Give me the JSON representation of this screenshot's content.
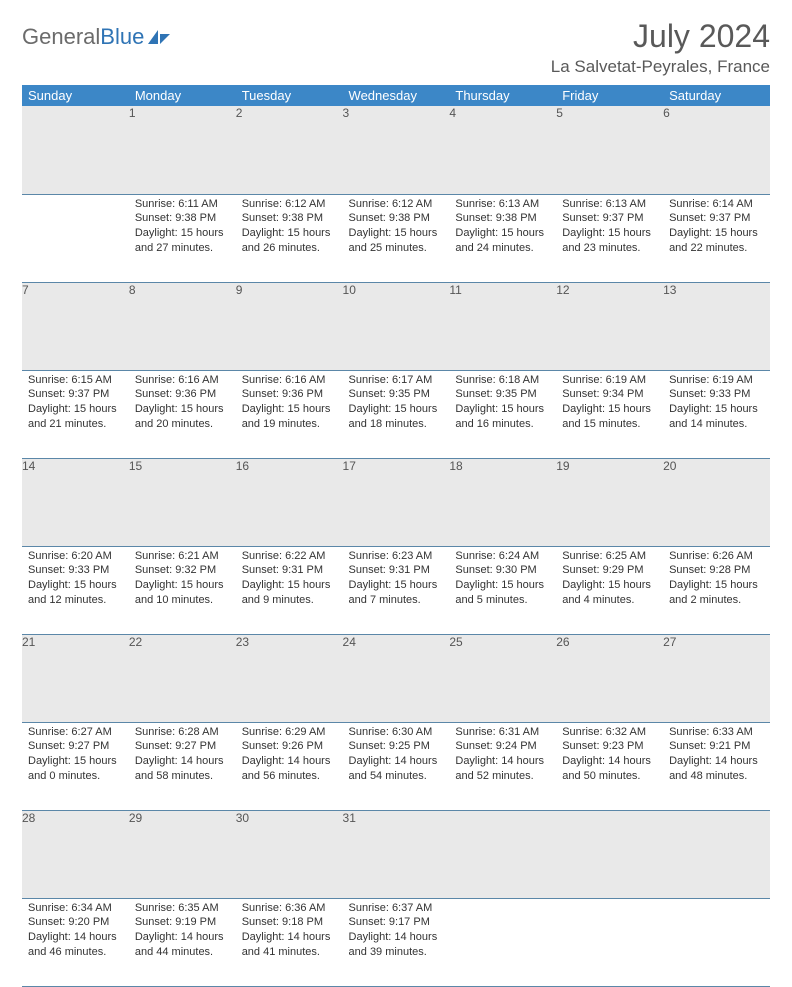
{
  "logo": {
    "text_a": "General",
    "text_b": "Blue"
  },
  "title": "July 2024",
  "location": "La Salvetat-Peyrales, France",
  "colors": {
    "header_bg": "#3c87c7",
    "header_fg": "#ffffff",
    "daynum_bg": "#e9e9e9",
    "row_border": "#5b87a8",
    "title_color": "#595959",
    "logo_gray": "#6b6b6b",
    "logo_blue": "#2f74b5",
    "body_text": "#333333"
  },
  "typography": {
    "title_fontsize": 32,
    "location_fontsize": 17,
    "weekday_fontsize": 13,
    "daynum_fontsize": 12,
    "body_fontsize": 11
  },
  "weekdays": [
    "Sunday",
    "Monday",
    "Tuesday",
    "Wednesday",
    "Thursday",
    "Friday",
    "Saturday"
  ],
  "weeks": [
    [
      {
        "n": "",
        "sr": "",
        "ss": "",
        "dl": ""
      },
      {
        "n": "1",
        "sr": "Sunrise: 6:11 AM",
        "ss": "Sunset: 9:38 PM",
        "dl": "Daylight: 15 hours and 27 minutes."
      },
      {
        "n": "2",
        "sr": "Sunrise: 6:12 AM",
        "ss": "Sunset: 9:38 PM",
        "dl": "Daylight: 15 hours and 26 minutes."
      },
      {
        "n": "3",
        "sr": "Sunrise: 6:12 AM",
        "ss": "Sunset: 9:38 PM",
        "dl": "Daylight: 15 hours and 25 minutes."
      },
      {
        "n": "4",
        "sr": "Sunrise: 6:13 AM",
        "ss": "Sunset: 9:38 PM",
        "dl": "Daylight: 15 hours and 24 minutes."
      },
      {
        "n": "5",
        "sr": "Sunrise: 6:13 AM",
        "ss": "Sunset: 9:37 PM",
        "dl": "Daylight: 15 hours and 23 minutes."
      },
      {
        "n": "6",
        "sr": "Sunrise: 6:14 AM",
        "ss": "Sunset: 9:37 PM",
        "dl": "Daylight: 15 hours and 22 minutes."
      }
    ],
    [
      {
        "n": "7",
        "sr": "Sunrise: 6:15 AM",
        "ss": "Sunset: 9:37 PM",
        "dl": "Daylight: 15 hours and 21 minutes."
      },
      {
        "n": "8",
        "sr": "Sunrise: 6:16 AM",
        "ss": "Sunset: 9:36 PM",
        "dl": "Daylight: 15 hours and 20 minutes."
      },
      {
        "n": "9",
        "sr": "Sunrise: 6:16 AM",
        "ss": "Sunset: 9:36 PM",
        "dl": "Daylight: 15 hours and 19 minutes."
      },
      {
        "n": "10",
        "sr": "Sunrise: 6:17 AM",
        "ss": "Sunset: 9:35 PM",
        "dl": "Daylight: 15 hours and 18 minutes."
      },
      {
        "n": "11",
        "sr": "Sunrise: 6:18 AM",
        "ss": "Sunset: 9:35 PM",
        "dl": "Daylight: 15 hours and 16 minutes."
      },
      {
        "n": "12",
        "sr": "Sunrise: 6:19 AM",
        "ss": "Sunset: 9:34 PM",
        "dl": "Daylight: 15 hours and 15 minutes."
      },
      {
        "n": "13",
        "sr": "Sunrise: 6:19 AM",
        "ss": "Sunset: 9:33 PM",
        "dl": "Daylight: 15 hours and 14 minutes."
      }
    ],
    [
      {
        "n": "14",
        "sr": "Sunrise: 6:20 AM",
        "ss": "Sunset: 9:33 PM",
        "dl": "Daylight: 15 hours and 12 minutes."
      },
      {
        "n": "15",
        "sr": "Sunrise: 6:21 AM",
        "ss": "Sunset: 9:32 PM",
        "dl": "Daylight: 15 hours and 10 minutes."
      },
      {
        "n": "16",
        "sr": "Sunrise: 6:22 AM",
        "ss": "Sunset: 9:31 PM",
        "dl": "Daylight: 15 hours and 9 minutes."
      },
      {
        "n": "17",
        "sr": "Sunrise: 6:23 AM",
        "ss": "Sunset: 9:31 PM",
        "dl": "Daylight: 15 hours and 7 minutes."
      },
      {
        "n": "18",
        "sr": "Sunrise: 6:24 AM",
        "ss": "Sunset: 9:30 PM",
        "dl": "Daylight: 15 hours and 5 minutes."
      },
      {
        "n": "19",
        "sr": "Sunrise: 6:25 AM",
        "ss": "Sunset: 9:29 PM",
        "dl": "Daylight: 15 hours and 4 minutes."
      },
      {
        "n": "20",
        "sr": "Sunrise: 6:26 AM",
        "ss": "Sunset: 9:28 PM",
        "dl": "Daylight: 15 hours and 2 minutes."
      }
    ],
    [
      {
        "n": "21",
        "sr": "Sunrise: 6:27 AM",
        "ss": "Sunset: 9:27 PM",
        "dl": "Daylight: 15 hours and 0 minutes."
      },
      {
        "n": "22",
        "sr": "Sunrise: 6:28 AM",
        "ss": "Sunset: 9:27 PM",
        "dl": "Daylight: 14 hours and 58 minutes."
      },
      {
        "n": "23",
        "sr": "Sunrise: 6:29 AM",
        "ss": "Sunset: 9:26 PM",
        "dl": "Daylight: 14 hours and 56 minutes."
      },
      {
        "n": "24",
        "sr": "Sunrise: 6:30 AM",
        "ss": "Sunset: 9:25 PM",
        "dl": "Daylight: 14 hours and 54 minutes."
      },
      {
        "n": "25",
        "sr": "Sunrise: 6:31 AM",
        "ss": "Sunset: 9:24 PM",
        "dl": "Daylight: 14 hours and 52 minutes."
      },
      {
        "n": "26",
        "sr": "Sunrise: 6:32 AM",
        "ss": "Sunset: 9:23 PM",
        "dl": "Daylight: 14 hours and 50 minutes."
      },
      {
        "n": "27",
        "sr": "Sunrise: 6:33 AM",
        "ss": "Sunset: 9:21 PM",
        "dl": "Daylight: 14 hours and 48 minutes."
      }
    ],
    [
      {
        "n": "28",
        "sr": "Sunrise: 6:34 AM",
        "ss": "Sunset: 9:20 PM",
        "dl": "Daylight: 14 hours and 46 minutes."
      },
      {
        "n": "29",
        "sr": "Sunrise: 6:35 AM",
        "ss": "Sunset: 9:19 PM",
        "dl": "Daylight: 14 hours and 44 minutes."
      },
      {
        "n": "30",
        "sr": "Sunrise: 6:36 AM",
        "ss": "Sunset: 9:18 PM",
        "dl": "Daylight: 14 hours and 41 minutes."
      },
      {
        "n": "31",
        "sr": "Sunrise: 6:37 AM",
        "ss": "Sunset: 9:17 PM",
        "dl": "Daylight: 14 hours and 39 minutes."
      },
      {
        "n": "",
        "sr": "",
        "ss": "",
        "dl": ""
      },
      {
        "n": "",
        "sr": "",
        "ss": "",
        "dl": ""
      },
      {
        "n": "",
        "sr": "",
        "ss": "",
        "dl": ""
      }
    ]
  ]
}
